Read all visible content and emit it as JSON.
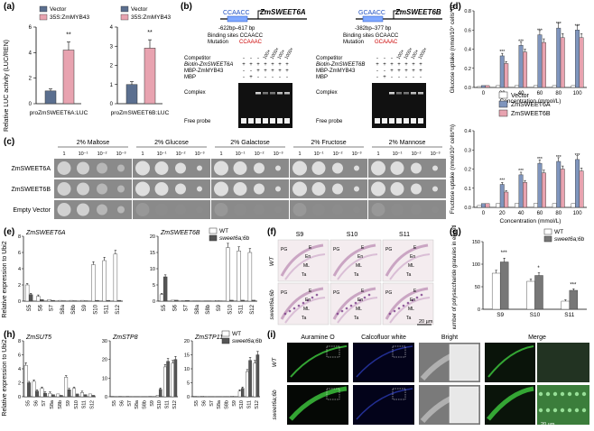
{
  "panel_labels": {
    "a": "(a)",
    "b": "(b)",
    "c": "(c)",
    "d": "(d)",
    "e": "(e)",
    "f": "(f)",
    "g": "(g)",
    "h": "(h)",
    "i": "(i)"
  },
  "panel_a": {
    "ylabel": "Relative LUC activity (LUC/REN)",
    "sig": "**",
    "chart_data": [
      {
        "type": "bar",
        "categories": [
          "Vector",
          "35S:ZmMYB43"
        ],
        "values": [
          1.0,
          4.2
        ],
        "xlabel": "proZmSWEET6A:LUC",
        "ylim": [
          0,
          6
        ],
        "legend": [
          "Vector",
          "35S:ZmMYB43"
        ],
        "colors": [
          "#5b6f8f",
          "#e8a3b0"
        ]
      },
      {
        "type": "bar",
        "categories": [
          "Vector",
          "35S:ZmMYB43"
        ],
        "values": [
          1.0,
          2.9
        ],
        "xlabel": "proZmSWEET6B:LUC",
        "ylim": [
          0,
          4
        ],
        "legend": [
          "Vector",
          "35S:ZmMYB43"
        ],
        "colors": [
          "#5b6f8f",
          "#e8a3b0"
        ]
      }
    ]
  },
  "panel_b": {
    "left": {
      "seq": "CCAACC",
      "gene": "ZmSWEET6A",
      "range": "-622bp–617 bp",
      "binding": "Binding sites CCAACC",
      "mutation": "Mutation",
      "mutseq": "CCAAAC",
      "comp": "Competitor",
      "biotin": "Biotin-ZmSWEET6A",
      "mbpz": "MBP-ZmMYB43",
      "mbp": "MBP"
    },
    "right": {
      "seq": "GCAACC",
      "gene": "ZmSWEET6B",
      "range": "-382bp–377 bp",
      "binding": "Binding sites GCAACC",
      "mutation": "Mutation",
      "mutseq": "GCAAAC",
      "comp": "Competitor",
      "biotin": "Biotin-ZmSWEET6B",
      "mbpz": "MBP-ZmMYB43",
      "mbp": "MBP"
    },
    "complex": "Complex",
    "free": "Free probe",
    "comp_vals": [
      "100×",
      "1000×",
      "100×",
      "1000×"
    ]
  },
  "panel_c": {
    "rows": [
      "ZmSWEET6A",
      "ZmSWEET6B",
      "Empty Vector"
    ],
    "groups": [
      "2% Maltose",
      "2% Glucose",
      "2% Galactose",
      "2% Fructose",
      "2% Mannose"
    ],
    "dil": [
      "1",
      "10⁻¹",
      "10⁻²",
      "10⁻³"
    ]
  },
  "panel_d": {
    "chart_data": [
      {
        "type": "bar",
        "categories": [
          "0",
          "20",
          "40",
          "60",
          "80",
          "100"
        ],
        "series": [
          {
            "name": "Vector",
            "values": [
              0.01,
              0.02,
              0.02,
              0.02,
              0.02,
              0.02
            ]
          },
          {
            "name": "ZmSWEET6A",
            "values": [
              0.02,
              0.33,
              0.44,
              0.55,
              0.62,
              0.6
            ]
          },
          {
            "name": "ZmSWEET6B",
            "values": [
              0.02,
              0.25,
              0.37,
              0.47,
              0.52,
              0.52
            ]
          }
        ],
        "ylabel": "Glucose uptake (nmol/10⁷ cells*h)",
        "xlabel": "Concentration (mmol/L)",
        "ylim": [
          0,
          0.8
        ],
        "yticks": [
          "0.0",
          "0.2",
          "0.4",
          "0.6",
          "0.8"
        ]
      },
      {
        "type": "bar",
        "categories": [
          "0",
          "20",
          "40",
          "60",
          "80",
          "100"
        ],
        "series": [
          {
            "name": "Vector",
            "values": [
              0.01,
              0.02,
              0.02,
              0.02,
              0.02,
              0.02
            ]
          },
          {
            "name": "ZmSWEET6A",
            "values": [
              0.02,
              0.12,
              0.17,
              0.23,
              0.24,
              0.25
            ]
          },
          {
            "name": "ZmSWEET6B",
            "values": [
              0.02,
              0.08,
              0.13,
              0.18,
              0.2,
              0.19
            ]
          }
        ],
        "ylabel": "Fructose uptake (nmol/10⁷ cells*h)",
        "xlabel": "Concentration (mmol/L)",
        "ylim": [
          0,
          0.4
        ],
        "yticks": [
          "0.0",
          "0.1",
          "0.2",
          "0.3",
          "0.4"
        ]
      }
    ],
    "colors": {
      "Vector": "#ffffff",
      "ZmSWEET6A": "#7f95bd",
      "ZmSWEET6B": "#e8a3b0"
    }
  },
  "panel_e": {
    "ylabel": "Relative expression to Ubi2",
    "legend": [
      "WT",
      "sweet6a;6b"
    ],
    "chart_data": [
      {
        "type": "bar",
        "title": "ZmSWEET6A",
        "categories": [
          "S5",
          "S6",
          "S7",
          "S8a",
          "S8b",
          "S9",
          "S10",
          "S11",
          "S12"
        ],
        "series": [
          {
            "name": "WT",
            "values": [
              2.0,
              0.6,
              0.2,
              0.1,
              0.1,
              0.1,
              4.5,
              5.0,
              5.8
            ]
          },
          {
            "name": "sweet6a;6b",
            "values": [
              0.8,
              0.2,
              0.1,
              0.05,
              0.05,
              0.05,
              0.1,
              0.1,
              0.1
            ]
          }
        ],
        "ylim": [
          0,
          8
        ],
        "yticks": [
          "0",
          "2",
          "4",
          "6",
          "8"
        ]
      },
      {
        "type": "bar",
        "title": "ZmSWEET6B",
        "categories": [
          "S5",
          "S6",
          "S7",
          "S8a",
          "S8b",
          "S9",
          "S10",
          "S11",
          "S12"
        ],
        "series": [
          {
            "name": "WT",
            "values": [
              2.0,
              0.3,
              0.2,
              0.1,
              0.1,
              0.2,
              16.5,
              15.5,
              15.0
            ]
          },
          {
            "name": "sweet6a;6b",
            "values": [
              7.5,
              0.3,
              0.2,
              0.1,
              0.1,
              0.1,
              0.3,
              0.3,
              0.3
            ]
          }
        ],
        "ylim": [
          0,
          20
        ],
        "yticks": [
          "0",
          "5",
          "10",
          "15",
          "20"
        ]
      }
    ]
  },
  "panel_f": {
    "cols": [
      "S9",
      "S10",
      "S11"
    ],
    "rows": [
      "WT",
      "sweet6a;6b"
    ],
    "scale": "20 µm"
  },
  "panel_g": {
    "chart_data": {
      "type": "bar",
      "categories": [
        "S9",
        "S10",
        "S11"
      ],
      "series": [
        {
          "name": "WT",
          "values": [
            80,
            62,
            18
          ]
        },
        {
          "name": "sweet6a;6b",
          "values": [
            105,
            75,
            42
          ]
        }
      ],
      "ylabel": "The number of polysaccharide granules in endothecium",
      "ylim": [
        0,
        150
      ],
      "yticks": [
        "0",
        "50",
        "100",
        "150"
      ],
      "sig": [
        "***",
        "*",
        "***"
      ]
    }
  },
  "panel_h": {
    "ylabel": "Relative expression to Ubi2",
    "legend": [
      "WT",
      "sweet6a;6b"
    ],
    "chart_data": [
      {
        "type": "bar",
        "title": "ZmSUT5",
        "categories": [
          "S5",
          "S6",
          "S7",
          "S8a",
          "S8b",
          "S9",
          "S10",
          "S11",
          "S12"
        ],
        "series": [
          {
            "name": "WT",
            "values": [
              4.5,
              2.2,
              1.2,
              0.5,
              0.4,
              2.8,
              1.2,
              0.6,
              0.4
            ]
          },
          {
            "name": "sweet6a;6b",
            "values": [
              2.0,
              0.8,
              0.5,
              0.3,
              0.2,
              1.0,
              0.4,
              0.3,
              0.2
            ]
          }
        ],
        "ylim": [
          0,
          8
        ],
        "yticks": [
          "0",
          "2",
          "4",
          "6",
          "8"
        ]
      },
      {
        "type": "bar",
        "title": "ZmSTP8",
        "categories": [
          "S5",
          "S6",
          "S7",
          "S8a",
          "S8b",
          "S9",
          "S10",
          "S11",
          "S12"
        ],
        "series": [
          {
            "name": "WT",
            "values": [
              0.2,
              0.2,
              0.2,
              0.1,
              0.1,
              0.2,
              0.8,
              16,
              18
            ]
          },
          {
            "name": "sweet6a;6b",
            "values": [
              0.1,
              0.1,
              0.1,
              0.1,
              0.1,
              0.1,
              4,
              19,
              20
            ]
          }
        ],
        "ylim": [
          0,
          30
        ],
        "yticks": [
          "0",
          "10",
          "20",
          "30"
        ]
      },
      {
        "type": "bar",
        "title": "ZmSTP11",
        "categories": [
          "S5",
          "S6",
          "S7",
          "S8a",
          "S8b",
          "S9",
          "S10",
          "S11",
          "S12"
        ],
        "series": [
          {
            "name": "WT",
            "values": [
              0.2,
              0.2,
              0.1,
              0.1,
              0.1,
              0.2,
              2,
              9,
              12
            ]
          },
          {
            "name": "sweet6a;6b",
            "values": [
              0.1,
              0.1,
              0.1,
              0.1,
              0.1,
              0.1,
              3,
              13,
              15
            ]
          }
        ],
        "ylim": [
          0,
          20
        ],
        "yticks": [
          "0",
          "5",
          "10",
          "15",
          "20"
        ]
      }
    ]
  },
  "panel_i": {
    "cols": [
      "Auramine O",
      "Calcofluor white",
      "Bright",
      "Merge"
    ],
    "rows": [
      "WT",
      "sweet6a;6b"
    ],
    "scale": "20 µm"
  }
}
